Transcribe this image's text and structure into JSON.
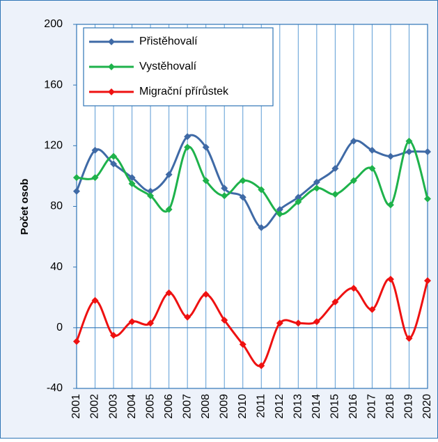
{
  "chart_data": {
    "type": "line",
    "y_label": "Počet osob",
    "categories": [
      "2001",
      "2002",
      "2003",
      "2004",
      "2005",
      "2006",
      "2007",
      "2008",
      "2009",
      "2010",
      "2011",
      "2012",
      "2013",
      "2014",
      "2015",
      "2016",
      "2017",
      "2018",
      "2019",
      "2020"
    ],
    "series": [
      {
        "name": "Přistěhovalí",
        "color": "#3f6aa6",
        "values": [
          90,
          117,
          108,
          99,
          90,
          101,
          126,
          119,
          92,
          86,
          66,
          78,
          86,
          96,
          105,
          123,
          117,
          113,
          116,
          116
        ]
      },
      {
        "name": "Vystěhovalí",
        "color": "#1eb24b",
        "values": [
          99,
          99,
          113,
          95,
          87,
          78,
          119,
          97,
          87,
          97,
          91,
          75,
          83,
          92,
          88,
          97,
          105,
          81,
          123,
          85
        ]
      },
      {
        "name": "Migrační přírůstek",
        "color": "#ee1111",
        "values": [
          -9,
          18,
          -5,
          4,
          3,
          23,
          7,
          22,
          5,
          -11,
          -25,
          3,
          3,
          4,
          17,
          26,
          12,
          32,
          -7,
          31
        ]
      }
    ],
    "ylim": [
      -40,
      200
    ],
    "yticks": [
      -40,
      0,
      40,
      80,
      120,
      160,
      200
    ],
    "grid": "x",
    "smooth": true,
    "legend": "top-left"
  }
}
